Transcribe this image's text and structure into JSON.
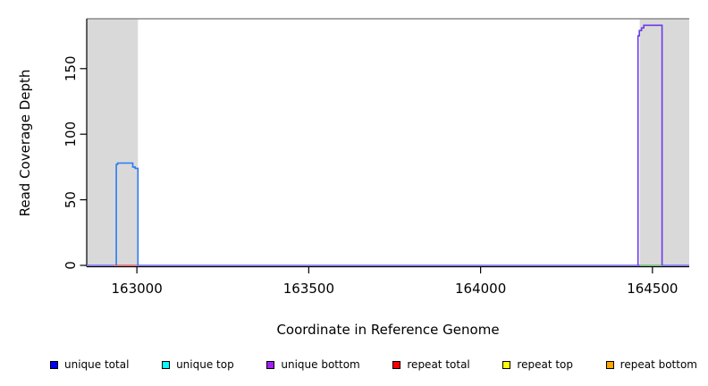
{
  "chart_data": {
    "type": "line",
    "title": "",
    "xlabel": "Coordinate in Reference Genome",
    "ylabel": "Read Coverage Depth",
    "xlim": [
      162854,
      164607
    ],
    "ylim": [
      0,
      188
    ],
    "x_ticks": [
      163000,
      163500,
      164000,
      164500
    ],
    "y_ticks": [
      0,
      50,
      100,
      150
    ],
    "grid": false,
    "background": "#ffffff",
    "plot_border_top_color": "#8a8a8a",
    "axis_color": "#000000",
    "shaded_region_color": "#d9d9d9",
    "shaded_regions": [
      {
        "name": "left-masked-region",
        "x0": 162854,
        "x1": 163003
      },
      {
        "name": "right-masked-region",
        "x0": 164463,
        "x1": 164607
      }
    ],
    "series": [
      {
        "name": "zero-coverage-baseline",
        "color": "#8079ec",
        "width": 1.7,
        "points": [
          [
            162854,
            0
          ],
          [
            164607,
            0
          ]
        ]
      },
      {
        "name": "repeat-coverage-left-zero-segment",
        "color": "#e87878",
        "width": 1.7,
        "points": [
          [
            162933,
            0
          ],
          [
            163000,
            0
          ]
        ]
      },
      {
        "name": "repeat-coverage-right-zero-segment",
        "color": "#7fc97f",
        "width": 1.7,
        "points": [
          [
            164464,
            0
          ],
          [
            164528,
            0
          ]
        ]
      },
      {
        "name": "unique-coverage-left-peak",
        "color": "#2b7bf2",
        "width": 1.6,
        "points": [
          [
            162940,
            0
          ],
          [
            162940,
            77
          ],
          [
            162944,
            77
          ],
          [
            162944,
            78
          ],
          [
            162988,
            78
          ],
          [
            162988,
            75
          ],
          [
            162995,
            75
          ],
          [
            162995,
            74
          ],
          [
            163003,
            74
          ],
          [
            163003,
            0
          ]
        ]
      },
      {
        "name": "unique-coverage-right-peak",
        "color": "#6d3ae8",
        "width": 1.6,
        "points": [
          [
            164458,
            0
          ],
          [
            164458,
            175
          ],
          [
            164462,
            175
          ],
          [
            164462,
            179
          ],
          [
            164468,
            179
          ],
          [
            164468,
            181
          ],
          [
            164475,
            181
          ],
          [
            164475,
            183
          ],
          [
            164528,
            183
          ],
          [
            164528,
            0
          ]
        ]
      }
    ],
    "legend_position": "bottom",
    "legend": [
      {
        "label": "unique total",
        "color": "#0000ff"
      },
      {
        "label": "unique top",
        "color": "#00ffff"
      },
      {
        "label": "unique bottom",
        "color": "#a020f0"
      },
      {
        "label": "repeat total",
        "color": "#ff0000"
      },
      {
        "label": "repeat top",
        "color": "#ffff00"
      },
      {
        "label": "repeat bottom",
        "color": "#ffa500"
      }
    ]
  }
}
